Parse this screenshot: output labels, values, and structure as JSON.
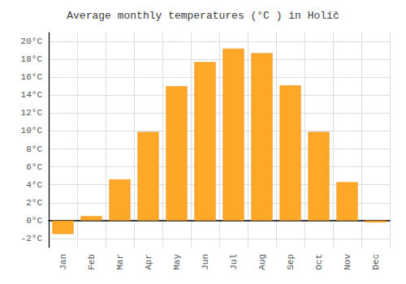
{
  "chart_data": {
    "type": "bar",
    "title": "Average monthly temperatures (°C ) in Holíč",
    "categories": [
      "Jan",
      "Feb",
      "Mar",
      "Apr",
      "May",
      "Jun",
      "Jul",
      "Aug",
      "Sep",
      "Oct",
      "Nov",
      "Dec"
    ],
    "values": [
      -1.5,
      0.5,
      4.6,
      9.9,
      15.0,
      17.7,
      19.2,
      18.7,
      15.1,
      9.9,
      4.3,
      -0.2
    ],
    "color": "#FFA726",
    "ylim": [
      -3,
      21
    ],
    "yticks": [
      {
        "value": -2,
        "label": "-2°C"
      },
      {
        "value": 0,
        "label": "0°C"
      },
      {
        "value": 2,
        "label": "2°C"
      },
      {
        "value": 4,
        "label": "4°C"
      },
      {
        "value": 6,
        "label": "6°C"
      },
      {
        "value": 8,
        "label": "8°C"
      },
      {
        "value": 10,
        "label": "10°C"
      },
      {
        "value": 12,
        "label": "12°C"
      },
      {
        "value": 14,
        "label": "14°C"
      },
      {
        "value": 16,
        "label": "16°C"
      },
      {
        "value": 18,
        "label": "18°C"
      },
      {
        "value": 20,
        "label": "20°C"
      }
    ],
    "grid": true
  }
}
